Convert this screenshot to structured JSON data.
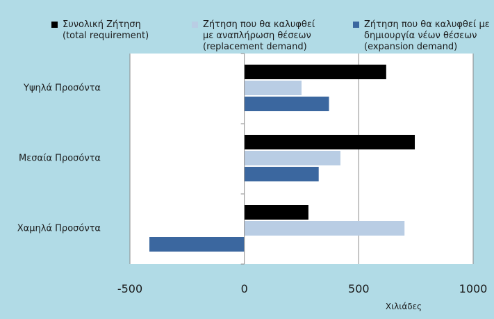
{
  "chart_data": {
    "type": "bar",
    "orientation": "horizontal",
    "categories": [
      "Υψηλά Προσόντα",
      "Μεσαία Προσόντα",
      "Χαμηλά Προσόντα"
    ],
    "series": [
      {
        "name_lines": [
          "Συνολική Ζήτηση",
          "(total requirement)"
        ],
        "color": "#000000",
        "values": [
          620,
          745,
          280
        ]
      },
      {
        "name_lines": [
          "Ζήτηση που θα καλυφθεί",
          "με αναπλήρωση θέσεων",
          "(replacement demand)"
        ],
        "color": "#b9cde4",
        "values": [
          250,
          420,
          700
        ]
      },
      {
        "name_lines": [
          "Ζήτηση που θα καλυφθεί με",
          "δημιουργία νέων θέσεων",
          "(expansion demand)"
        ],
        "color": "#3b679f",
        "values": [
          370,
          325,
          -415
        ]
      }
    ],
    "xlim": [
      -500,
      1000
    ],
    "xticks": [
      "-500",
      "0",
      "500",
      "1000"
    ],
    "xlabel": "Χιλιάδες",
    "ylabel": "",
    "title": "",
    "grid": "vertical",
    "legend_position": "top"
  }
}
